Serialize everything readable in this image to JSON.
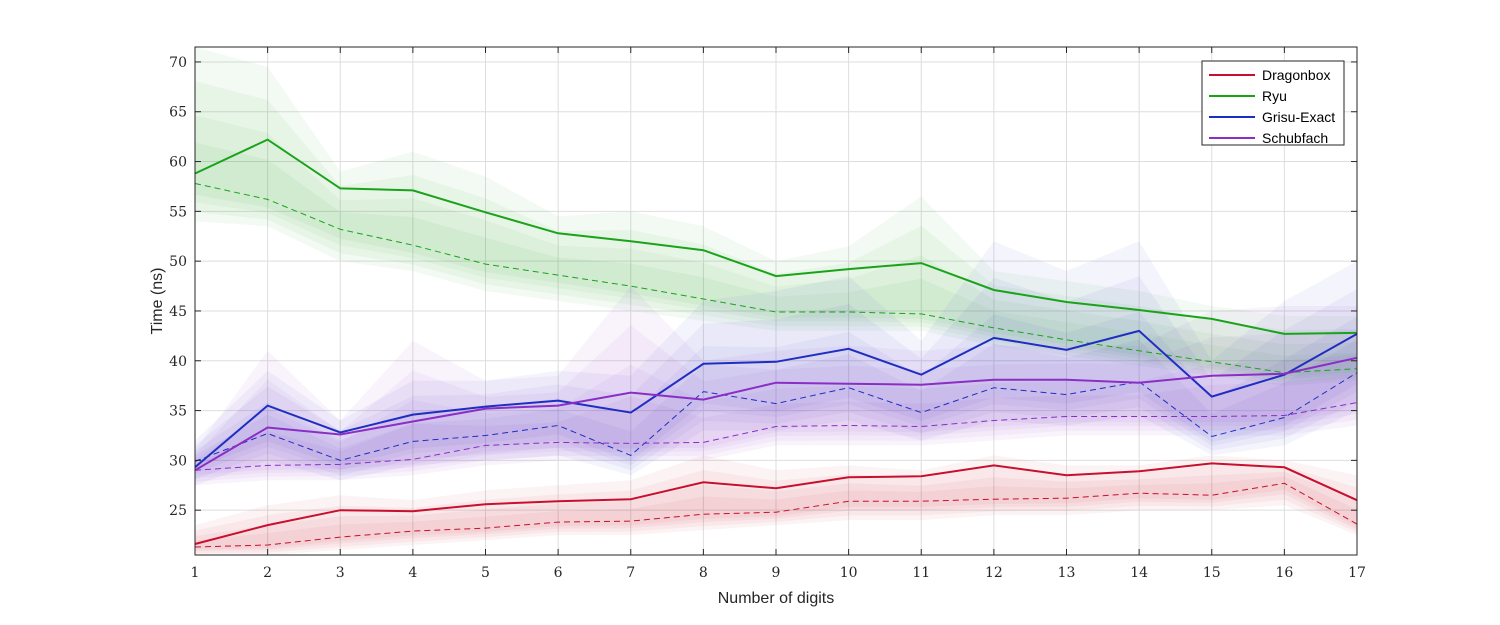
{
  "chart_data": {
    "type": "line",
    "title": "",
    "xlabel": "Number of digits",
    "ylabel": "Time (ns)",
    "x": [
      1,
      2,
      3,
      4,
      5,
      6,
      7,
      8,
      9,
      10,
      11,
      12,
      13,
      14,
      15,
      16,
      17
    ],
    "xlim": [
      1,
      17
    ],
    "ylim": [
      20.5,
      71.5
    ],
    "yticks": [
      25,
      30,
      35,
      40,
      45,
      50,
      55,
      60,
      65,
      70
    ],
    "grid": true,
    "legend_position": "top-right",
    "series": [
      {
        "name": "Dragonbox",
        "color": "#c8102e",
        "mean": [
          21.6,
          23.5,
          25.0,
          24.9,
          25.6,
          25.9,
          26.1,
          27.8,
          27.2,
          28.3,
          28.4,
          29.5,
          28.5,
          28.9,
          29.7,
          29.3,
          26.0
        ],
        "median": [
          21.3,
          21.5,
          22.3,
          22.9,
          23.2,
          23.8,
          23.9,
          24.6,
          24.8,
          25.9,
          25.9,
          26.1,
          26.2,
          26.7,
          26.5,
          27.7,
          23.6
        ],
        "band_low": [
          20.5,
          20.5,
          21.0,
          21.5,
          22.0,
          22.5,
          22.5,
          23.0,
          23.5,
          24.0,
          24.0,
          24.5,
          24.5,
          25.0,
          25.0,
          25.5,
          22.5
        ],
        "band_high": [
          23.5,
          25.5,
          26.5,
          26.0,
          27.0,
          27.5,
          28.0,
          30.5,
          29.0,
          29.5,
          29.0,
          30.5,
          29.5,
          29.5,
          30.5,
          30.0,
          28.5
        ]
      },
      {
        "name": "Ryu",
        "color": "#1aa31a",
        "mean": [
          58.8,
          62.2,
          57.3,
          57.1,
          54.9,
          52.8,
          52.0,
          51.1,
          48.5,
          49.2,
          49.8,
          47.1,
          45.9,
          45.1,
          44.2,
          42.7,
          42.8
        ],
        "median": [
          57.8,
          56.2,
          53.2,
          51.6,
          49.7,
          48.6,
          47.5,
          46.2,
          44.9,
          44.9,
          44.7,
          43.3,
          42.1,
          41.0,
          39.9,
          38.8,
          39.2
        ],
        "band_low": [
          54.0,
          53.5,
          50.0,
          49.0,
          47.0,
          46.0,
          45.0,
          44.0,
          43.0,
          43.0,
          43.0,
          41.5,
          40.5,
          39.5,
          38.5,
          37.5,
          38.0
        ],
        "band_high": [
          71.5,
          69.5,
          59.0,
          61.0,
          58.5,
          54.5,
          55.0,
          53.5,
          50.0,
          51.5,
          56.5,
          49.0,
          48.0,
          47.0,
          45.5,
          44.5,
          44.5
        ]
      },
      {
        "name": "Grisu-Exact",
        "color": "#1f2ec2",
        "mean": [
          29.3,
          35.5,
          32.8,
          34.6,
          35.4,
          36.0,
          34.8,
          39.7,
          39.9,
          41.2,
          38.6,
          42.3,
          41.1,
          43.0,
          36.4,
          38.6,
          42.7
        ],
        "median": [
          29.9,
          32.7,
          30.0,
          31.9,
          32.5,
          33.5,
          30.5,
          36.9,
          35.7,
          37.3,
          34.8,
          37.3,
          36.6,
          37.9,
          32.4,
          34.3,
          38.8
        ],
        "band_low": [
          27.5,
          30.0,
          28.0,
          29.5,
          30.0,
          30.5,
          28.5,
          33.0,
          33.0,
          34.0,
          32.0,
          34.0,
          33.5,
          34.5,
          30.5,
          31.5,
          35.0
        ],
        "band_high": [
          32.0,
          39.0,
          34.0,
          38.0,
          38.0,
          39.0,
          38.5,
          46.0,
          47.0,
          48.5,
          42.0,
          52.0,
          49.0,
          52.0,
          40.0,
          46.0,
          50.0
        ]
      },
      {
        "name": "Schubfach",
        "color": "#8a2ec5",
        "mean": [
          29.0,
          33.3,
          32.6,
          33.9,
          35.2,
          35.5,
          36.8,
          36.1,
          37.8,
          37.7,
          37.6,
          38.1,
          38.1,
          37.8,
          38.5,
          38.7,
          40.3
        ],
        "median": [
          29.0,
          29.5,
          29.6,
          30.1,
          31.5,
          31.8,
          31.7,
          31.8,
          33.4,
          33.5,
          33.4,
          34.0,
          34.4,
          34.4,
          34.4,
          34.5,
          35.8
        ],
        "band_low": [
          27.5,
          28.0,
          28.0,
          28.5,
          29.5,
          30.0,
          30.0,
          30.0,
          31.5,
          31.5,
          31.5,
          32.0,
          32.5,
          32.5,
          32.5,
          32.5,
          33.5
        ],
        "band_high": [
          31.0,
          41.0,
          34.0,
          42.0,
          38.0,
          38.5,
          47.5,
          40.0,
          41.0,
          41.5,
          41.0,
          41.5,
          41.5,
          41.5,
          45.0,
          45.5,
          45.5
        ]
      }
    ]
  }
}
